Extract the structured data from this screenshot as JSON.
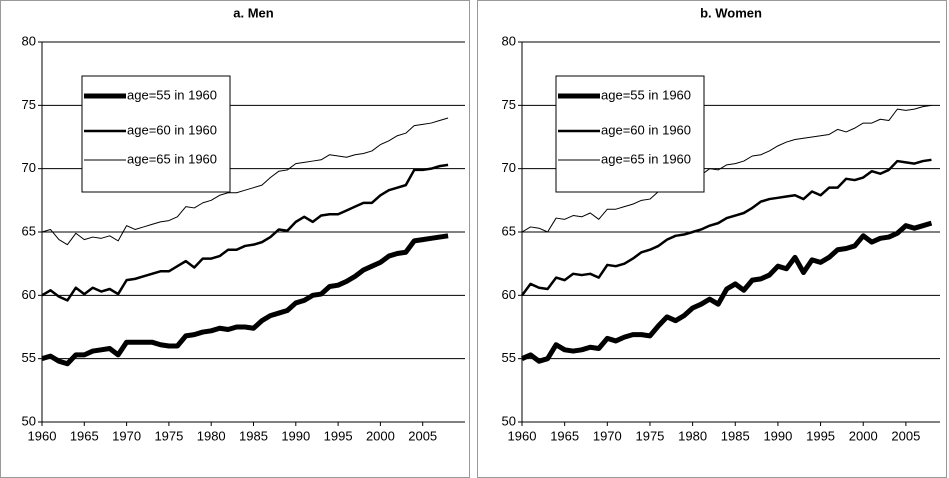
{
  "chart_data": [
    {
      "type": "line",
      "title": "a. Men",
      "x": [
        1960,
        1961,
        1962,
        1963,
        1964,
        1965,
        1966,
        1967,
        1968,
        1969,
        1970,
        1971,
        1972,
        1973,
        1974,
        1975,
        1976,
        1977,
        1978,
        1979,
        1980,
        1981,
        1982,
        1983,
        1984,
        1985,
        1986,
        1987,
        1988,
        1989,
        1990,
        1991,
        1992,
        1993,
        1994,
        1995,
        1996,
        1997,
        1998,
        1999,
        2000,
        2001,
        2002,
        2003,
        2004,
        2005,
        2006,
        2007,
        2008
      ],
      "xlim": [
        1960,
        2010
      ],
      "xticks": [
        1960,
        1965,
        1970,
        1975,
        1980,
        1985,
        1990,
        1995,
        2000,
        2005
      ],
      "ylim": [
        50,
        80
      ],
      "yticks": [
        50,
        55,
        60,
        65,
        70,
        75,
        80
      ],
      "grid": true,
      "series": [
        {
          "name": "age=55 in 1960",
          "color": "#000000",
          "values": [
            55,
            55.2,
            54.8,
            54.6,
            55.3,
            55.3,
            55.6,
            55.7,
            55.8,
            55.3,
            56.3,
            56.3,
            56.3,
            56.3,
            56.1,
            56.0,
            56.0,
            56.8,
            56.9,
            57.1,
            57.2,
            57.4,
            57.3,
            57.5,
            57.5,
            57.4,
            58.0,
            58.4,
            58.6,
            58.8,
            59.4,
            59.6,
            60.0,
            60.1,
            60.7,
            60.8,
            61.1,
            61.5,
            62.0,
            62.3,
            62.6,
            63.1,
            63.3,
            63.4,
            64.3,
            64.4,
            64.5,
            64.6,
            64.7
          ]
        },
        {
          "name": "age=60 in 1960",
          "color": "#000000",
          "values": [
            60,
            60.4,
            59.9,
            59.6,
            60.6,
            60.1,
            60.6,
            60.3,
            60.5,
            60.1,
            61.2,
            61.3,
            61.5,
            61.7,
            61.9,
            61.9,
            62.3,
            62.7,
            62.2,
            62.9,
            62.9,
            63.1,
            63.6,
            63.6,
            63.9,
            64.0,
            64.2,
            64.6,
            65.2,
            65.1,
            65.8,
            66.2,
            65.8,
            66.3,
            66.4,
            66.4,
            66.7,
            67.0,
            67.3,
            67.3,
            67.9,
            68.3,
            68.5,
            68.7,
            69.9,
            69.9,
            70.0,
            70.2,
            70.3
          ]
        },
        {
          "name": "age=65 in 1960",
          "color": "#000000",
          "values": [
            65,
            65.2,
            64.4,
            64.0,
            64.9,
            64.4,
            64.6,
            64.5,
            64.7,
            64.3,
            65.5,
            65.2,
            65.4,
            65.6,
            65.8,
            65.9,
            66.2,
            67.0,
            66.9,
            67.3,
            67.5,
            67.9,
            68.1,
            68.1,
            68.3,
            68.5,
            68.7,
            69.3,
            69.8,
            69.9,
            70.4,
            70.5,
            70.6,
            70.7,
            71.1,
            71.0,
            70.9,
            71.1,
            71.2,
            71.4,
            71.9,
            72.2,
            72.6,
            72.8,
            73.4,
            73.5,
            73.6,
            73.8,
            74.0
          ]
        }
      ]
    },
    {
      "type": "line",
      "title": "b. Women",
      "x": [
        1960,
        1961,
        1962,
        1963,
        1964,
        1965,
        1966,
        1967,
        1968,
        1969,
        1970,
        1971,
        1972,
        1973,
        1974,
        1975,
        1976,
        1977,
        1978,
        1979,
        1980,
        1981,
        1982,
        1983,
        1984,
        1985,
        1986,
        1987,
        1988,
        1989,
        1990,
        1991,
        1992,
        1993,
        1994,
        1995,
        1996,
        1997,
        1998,
        1999,
        2000,
        2001,
        2002,
        2003,
        2004,
        2005,
        2006,
        2007,
        2008
      ],
      "xlim": [
        1960,
        2009
      ],
      "xticks": [
        1960,
        1965,
        1970,
        1975,
        1980,
        1985,
        1990,
        1995,
        2000,
        2005
      ],
      "ylim": [
        50,
        80
      ],
      "yticks": [
        50,
        55,
        60,
        65,
        70,
        75,
        80
      ],
      "grid": true,
      "series": [
        {
          "name": "age=55 in 1960",
          "color": "#000000",
          "values": [
            55,
            55.3,
            54.8,
            55.0,
            56.1,
            55.7,
            55.6,
            55.7,
            55.9,
            55.8,
            56.6,
            56.4,
            56.7,
            56.9,
            56.9,
            56.8,
            57.6,
            58.3,
            58.0,
            58.4,
            59.0,
            59.3,
            59.7,
            59.3,
            60.5,
            60.9,
            60.4,
            61.2,
            61.3,
            61.6,
            62.3,
            62.1,
            63.0,
            61.8,
            62.8,
            62.6,
            63.0,
            63.6,
            63.7,
            63.9,
            64.7,
            64.2,
            64.5,
            64.6,
            64.9,
            65.5,
            65.3,
            65.5,
            65.7
          ]
        },
        {
          "name": "age=60 in 1960",
          "color": "#000000",
          "values": [
            60,
            60.9,
            60.6,
            60.5,
            61.4,
            61.2,
            61.7,
            61.6,
            61.7,
            61.4,
            62.4,
            62.3,
            62.5,
            62.9,
            63.4,
            63.6,
            63.9,
            64.4,
            64.7,
            64.8,
            65.0,
            65.2,
            65.5,
            65.7,
            66.1,
            66.3,
            66.5,
            66.9,
            67.4,
            67.6,
            67.7,
            67.8,
            67.9,
            67.6,
            68.2,
            67.9,
            68.5,
            68.5,
            69.2,
            69.1,
            69.3,
            69.8,
            69.6,
            69.9,
            70.6,
            70.5,
            70.4,
            70.6,
            70.7
          ]
        },
        {
          "name": "age=65 in 1960",
          "color": "#000000",
          "values": [
            65,
            65.4,
            65.3,
            65.0,
            66.1,
            66.0,
            66.3,
            66.2,
            66.5,
            66.0,
            66.8,
            66.8,
            67.0,
            67.2,
            67.5,
            67.6,
            68.2,
            68.5,
            68.8,
            69.2,
            69.3,
            69.5,
            70.0,
            69.9,
            70.3,
            70.4,
            70.6,
            71.0,
            71.1,
            71.4,
            71.8,
            72.1,
            72.3,
            72.4,
            72.5,
            72.6,
            72.7,
            73.1,
            72.9,
            73.2,
            73.6,
            73.6,
            73.9,
            73.8,
            74.7,
            74.6,
            74.7,
            74.9,
            75.0
          ]
        }
      ]
    }
  ]
}
